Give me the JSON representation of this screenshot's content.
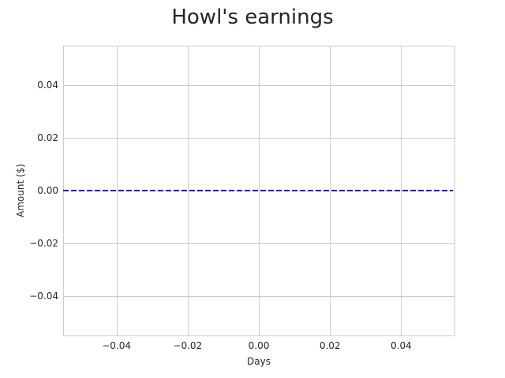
{
  "chart_data": {
    "type": "line",
    "title": "Howl's earnings",
    "xlabel": "Days",
    "ylabel": "Amount ($)",
    "xlim": [
      -0.055,
      0.055
    ],
    "ylim": [
      -0.055,
      0.055
    ],
    "x_ticks": [
      -0.04,
      -0.02,
      0.0,
      0.02,
      0.04
    ],
    "x_tick_labels": [
      "−0.04",
      "−0.02",
      "0.00",
      "0.02",
      "0.04"
    ],
    "y_ticks": [
      0.04,
      0.02,
      0.0,
      -0.02,
      -0.04
    ],
    "y_tick_labels": [
      "0.04",
      "0.02",
      "0.00",
      "−0.02",
      "−0.04"
    ],
    "grid": true,
    "series": [
      {
        "color": "#0000cc",
        "line_style": "dashed",
        "horizontal_line_y": 0.0
      }
    ]
  }
}
